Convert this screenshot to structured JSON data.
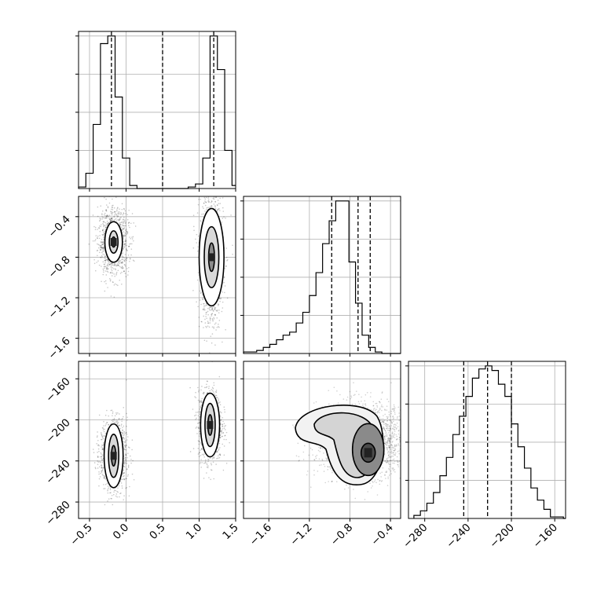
{
  "chart_data": [
    {
      "type": "histogram",
      "panel": "hist-param-1",
      "x_range": [
        -0.65,
        1.5
      ],
      "xticks": [
        -0.5,
        0.0,
        0.5,
        1.0,
        1.5
      ],
      "bins_start": -0.65,
      "bin_width": 0.1,
      "counts": [
        1,
        10,
        42,
        95,
        100,
        60,
        20,
        2,
        0,
        0,
        0,
        0,
        0,
        0,
        0,
        1,
        3,
        20,
        100,
        78,
        25,
        2
      ],
      "quantiles": [
        -0.2,
        0.5,
        1.2
      ],
      "grid": true
    },
    {
      "type": "scatter-contour",
      "panel": "2d-param1-param2",
      "x_range": [
        -0.65,
        1.5
      ],
      "y_range": [
        -1.75,
        -0.2
      ],
      "xticks": [
        -0.5,
        0.0,
        0.5,
        1.0,
        1.5
      ],
      "yticks": [
        -0.4,
        -0.8,
        -1.2,
        -1.6
      ],
      "ytick_labels": [
        "−0.4",
        "−0.8",
        "−1.2",
        "−1.6"
      ],
      "clusters": [
        {
          "center": [
            -0.17,
            -0.65
          ],
          "spread": [
            0.09,
            0.14
          ],
          "contour_levels": [
            [
              0.12,
              0.2
            ],
            [
              0.06,
              0.11
            ],
            [
              0.025,
              0.05
            ]
          ]
        },
        {
          "center": [
            1.17,
            -0.8
          ],
          "spread": [
            0.07,
            0.3
          ],
          "contour_levels": [
            [
              0.17,
              0.48
            ],
            [
              0.1,
              0.3
            ],
            [
              0.04,
              0.14
            ]
          ]
        }
      ],
      "grid": true
    },
    {
      "type": "histogram",
      "panel": "hist-param-2",
      "x_range": [
        -1.85,
        -0.3
      ],
      "xticks": [
        -1.6,
        -1.2,
        -0.8,
        -0.4
      ],
      "bins_start": -1.85,
      "bin_width": 0.065,
      "counts": [
        1,
        1,
        2,
        4,
        6,
        9,
        12,
        14,
        20,
        27,
        38,
        53,
        72,
        87,
        100,
        100,
        60,
        33,
        12,
        4,
        1,
        0,
        0,
        0
      ],
      "quantiles": [
        -0.98,
        -0.72,
        -0.6
      ],
      "grid": true
    },
    {
      "type": "scatter-contour",
      "panel": "2d-param1-param3",
      "x_range": [
        -0.65,
        1.5
      ],
      "y_range": [
        -296,
        -143
      ],
      "xticks": [
        -0.5,
        0.0,
        0.5,
        1.0,
        1.5
      ],
      "yticks": [
        -160,
        -200,
        -240,
        -280
      ],
      "xtick_labels": [
        "−0.5",
        "0.0",
        "0.5",
        "1.0",
        "1.5"
      ],
      "ytick_labels": [
        "−160",
        "−200",
        "−240",
        "−280"
      ],
      "clusters": [
        {
          "center": [
            -0.17,
            -235
          ],
          "spread": [
            0.08,
            15
          ],
          "contour_levels": [
            [
              0.13,
              31
            ],
            [
              0.07,
              21
            ],
            [
              0.03,
              10
            ]
          ]
        },
        {
          "center": [
            1.15,
            -205
          ],
          "spread": [
            0.07,
            15
          ],
          "contour_levels": [
            [
              0.13,
              31
            ],
            [
              0.07,
              21
            ],
            [
              0.03,
              10
            ]
          ]
        }
      ],
      "grid": true
    },
    {
      "type": "scatter-contour",
      "panel": "2d-param2-param3",
      "x_range": [
        -1.85,
        -0.3
      ],
      "y_range": [
        -296,
        -143
      ],
      "xticks": [
        -1.6,
        -1.2,
        -0.8,
        -0.4
      ],
      "yticks": [
        -160,
        -200,
        -240,
        -280
      ],
      "xtick_labels": [
        "−1.6",
        "−1.2",
        "−0.8",
        "−0.4"
      ],
      "peak": [
        -0.62,
        -232
      ],
      "grid": true
    },
    {
      "type": "histogram",
      "panel": "hist-param-3",
      "x_range": [
        -295,
        -150
      ],
      "xticks": [
        -280,
        -240,
        -200,
        -160
      ],
      "xtick_labels": [
        "−280",
        "−240",
        "−200",
        "−160"
      ],
      "bins_start": -290,
      "bin_width": 6,
      "counts": [
        2,
        5,
        10,
        17,
        28,
        40,
        55,
        67,
        80,
        92,
        98,
        100,
        97,
        88,
        80,
        62,
        47,
        33,
        20,
        12,
        6,
        1,
        1,
        0
      ],
      "quantiles": [
        -244,
        -222,
        -200
      ],
      "grid": true
    }
  ]
}
